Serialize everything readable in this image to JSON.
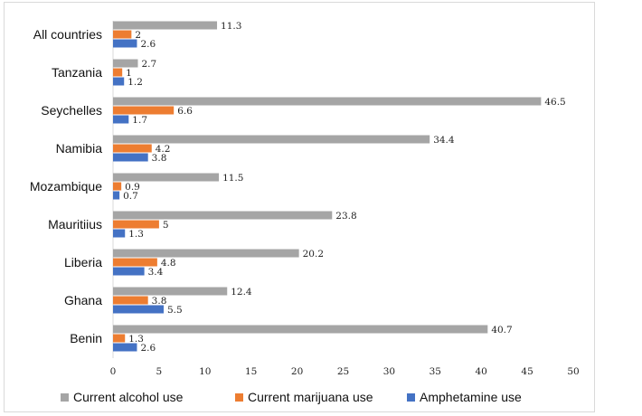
{
  "chart_data": {
    "type": "bar",
    "orientation": "horizontal",
    "title": "",
    "xlabel": "",
    "ylabel": "",
    "xlim": [
      0,
      50
    ],
    "x_ticks": [
      0,
      5,
      10,
      15,
      20,
      25,
      30,
      35,
      40,
      45,
      50
    ],
    "grid": false,
    "legend_position": "bottom",
    "categories": [
      "All countries",
      "Tanzania",
      "Seychelles",
      "Namibia",
      "Mozambique",
      "Mauritiius",
      "Liberia",
      "Ghana",
      "Benin"
    ],
    "series": [
      {
        "name": "Current alcohol use",
        "color": "#a5a5a5",
        "values": [
          11.3,
          2.7,
          46.5,
          34.4,
          11.5,
          23.8,
          20.2,
          12.4,
          40.7
        ]
      },
      {
        "name": "Current marijuana use",
        "color": "#ed7d31",
        "values": [
          2,
          1,
          6.6,
          4.2,
          0.9,
          5,
          4.8,
          3.8,
          1.3
        ]
      },
      {
        "name": "Amphetamine use",
        "color": "#4472c4",
        "values": [
          2.6,
          1.2,
          1.7,
          3.8,
          0.7,
          1.3,
          3.4,
          5.5,
          2.6
        ]
      }
    ]
  }
}
